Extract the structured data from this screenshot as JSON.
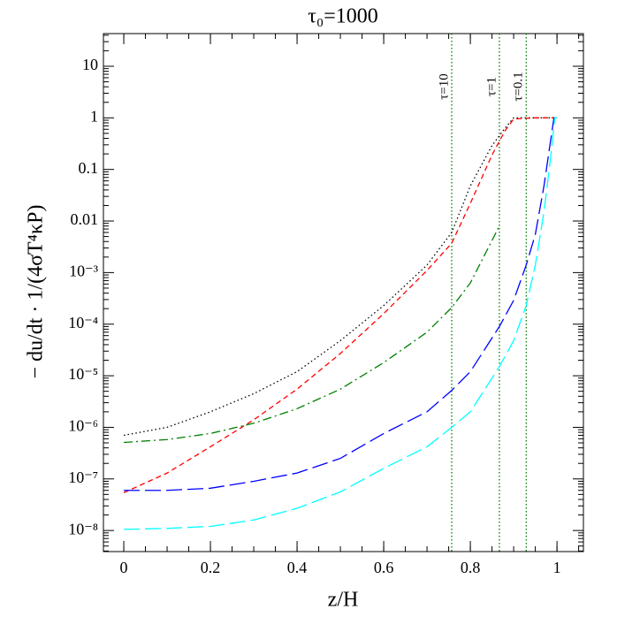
{
  "chart_data": {
    "type": "line",
    "title": "τ₀=1000",
    "x_label": "z/H",
    "y_label": "− du/dt · 1/(4σT⁴κP)",
    "xlim": [
      -0.047,
      1.061
    ],
    "ylim": [
      3.9e-09,
      43
    ],
    "log_y": true,
    "xticks": [
      0,
      0.2,
      0.4,
      0.6,
      0.8,
      1
    ],
    "yticks": [
      10,
      1,
      0.1,
      0.01,
      {
        "value": 0.001,
        "label": "10⁻³"
      },
      {
        "value": 0.0001,
        "label": "10⁻⁴"
      },
      {
        "value": 1e-05,
        "label": "10⁻⁵"
      },
      {
        "value": 1e-06,
        "label": "10⁻⁶"
      },
      {
        "value": 1e-07,
        "label": "10⁻⁷"
      },
      {
        "value": 1e-08,
        "label": "10⁻⁸"
      }
    ],
    "vlines": [
      {
        "x": 0.757,
        "label": "τ=10"
      },
      {
        "x": 0.867,
        "label": "τ=1"
      },
      {
        "x": 0.929,
        "label": "τ=0.1"
      }
    ],
    "vline_color": "#008000",
    "series": [
      {
        "color": "#000000",
        "linestyle": "dotted",
        "x": [
          0,
          0.1,
          0.2,
          0.3,
          0.4,
          0.5,
          0.6,
          0.7,
          0.757,
          0.8,
          0.85,
          0.88,
          0.9,
          0.95,
          1
        ],
        "values": [
          7e-07,
          1e-06,
          2e-06,
          4.5e-06,
          1.2e-05,
          4.8e-05,
          0.00023,
          0.0014,
          0.006,
          0.048,
          0.29,
          0.63,
          1,
          1,
          1
        ]
      },
      {
        "color": "#ff0000",
        "linestyle": "dashed",
        "x": [
          0,
          0.1,
          0.2,
          0.3,
          0.4,
          0.5,
          0.6,
          0.7,
          0.757,
          0.8,
          0.85,
          0.88,
          0.9,
          0.95,
          1
        ],
        "values": [
          5.4e-08,
          1.3e-07,
          4.2e-07,
          1.4e-06,
          5.5e-06,
          2.7e-05,
          0.00016,
          0.0011,
          0.0037,
          0.022,
          0.19,
          0.56,
          0.95,
          1,
          1
        ]
      },
      {
        "color": "#008000",
        "linestyle": "dashdot",
        "x": [
          0,
          0.1,
          0.2,
          0.3,
          0.4,
          0.5,
          0.6,
          0.7,
          0.757,
          0.8,
          0.867
        ],
        "values": [
          5.1e-07,
          5.8e-07,
          7.6e-07,
          1.2e-06,
          2.3e-06,
          5.5e-06,
          1.8e-05,
          7e-05,
          0.00021,
          0.00063,
          0.008
        ]
      },
      {
        "color": "#0000ff",
        "linestyle": "longdash",
        "x": [
          0,
          0.1,
          0.2,
          0.3,
          0.4,
          0.5,
          0.6,
          0.7,
          0.757,
          0.8,
          0.867,
          0.9,
          0.929,
          0.95,
          0.97,
          0.985,
          0.993,
          1
        ],
        "values": [
          6e-08,
          6e-08,
          6.6e-08,
          9e-08,
          1.3e-07,
          2.5e-07,
          7.6e-07,
          2e-06,
          5.2e-06,
          1.2e-05,
          9e-05,
          0.00029,
          0.0014,
          0.0055,
          0.048,
          0.35,
          1,
          1
        ]
      },
      {
        "color": "#00ffff",
        "linestyle": "longdash",
        "x": [
          0,
          0.1,
          0.2,
          0.3,
          0.4,
          0.5,
          0.6,
          0.7,
          0.757,
          0.8,
          0.867,
          0.9,
          0.929,
          0.95,
          0.97,
          0.985,
          0.995,
          1
        ],
        "values": [
          1.05e-08,
          1.1e-08,
          1.2e-08,
          1.6e-08,
          2.7e-08,
          5.6e-08,
          1.6e-07,
          4.2e-07,
          1e-06,
          2e-06,
          1.5e-05,
          4.8e-05,
          0.00023,
          0.0014,
          0.015,
          0.16,
          1,
          1
        ]
      }
    ]
  }
}
